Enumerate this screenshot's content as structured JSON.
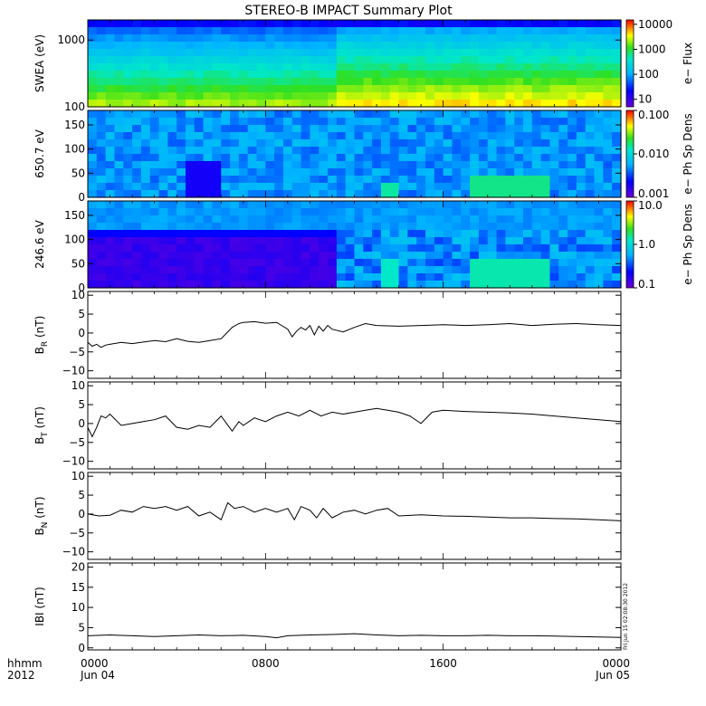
{
  "title": "STEREO-B IMPACT Summary Plot",
  "footer": {
    "left_top": "hhmm",
    "left_bottom": "2012",
    "ticks": [
      {
        "hour": 0,
        "top": "0000",
        "bottom": "Jun 04"
      },
      {
        "hour": 8,
        "top": "0800",
        "bottom": ""
      },
      {
        "hour": 16,
        "top": "1600",
        "bottom": ""
      },
      {
        "hour": 24,
        "top": "0000",
        "bottom": "Jun 05"
      }
    ],
    "stamp": "Fri Jun 15 02:08:30 2012"
  },
  "chart_data": [
    {
      "type": "heatmap",
      "ylabel": "SWEA (eV)",
      "colorbar_label": "e− Flux",
      "y_scale": "log",
      "ylim": [
        100,
        2000
      ],
      "yticks": [
        "100",
        "1000"
      ],
      "colorbar_ticks": [
        "10",
        "100",
        "1000",
        "10000"
      ],
      "colorbar_range": [
        5,
        15000
      ],
      "xlim_hours": [
        0,
        24
      ]
    },
    {
      "type": "heatmap",
      "ylabel": "650.7 eV",
      "colorbar_label": "e− Ph Sp Dens",
      "ylim": [
        0,
        180
      ],
      "yticks": [
        "0",
        "50",
        "100",
        "150"
      ],
      "colorbar_ticks": [
        "0.001",
        "0.010",
        "0.100"
      ],
      "colorbar_range": [
        0.001,
        0.1
      ],
      "xlim_hours": [
        0,
        24
      ]
    },
    {
      "type": "heatmap",
      "ylabel": "246.6 eV",
      "colorbar_label": "e− Ph Sp Dens",
      "ylim": [
        0,
        180
      ],
      "yticks": [
        "0",
        "50",
        "100",
        "150"
      ],
      "colorbar_ticks": [
        "0.1",
        "1.0",
        "10.0"
      ],
      "colorbar_range": [
        0.1,
        10
      ],
      "xlim_hours": [
        0,
        24
      ]
    },
    {
      "type": "line",
      "ylabel_main": "B",
      "ylabel_sub": "R",
      "ylabel_unit": " (nT)",
      "ylim": [
        -12,
        11
      ],
      "yticks": [
        "−10",
        "−5",
        "0",
        "5",
        "10"
      ],
      "xlim_hours": [
        0,
        24
      ],
      "x": [
        0,
        0.2,
        0.4,
        0.6,
        0.8,
        1.0,
        1.5,
        2.0,
        2.5,
        3.0,
        3.5,
        4.0,
        4.5,
        5.0,
        5.5,
        6.0,
        6.5,
        6.8,
        7.0,
        7.5,
        8.0,
        8.5,
        9.0,
        9.2,
        9.4,
        9.6,
        9.8,
        10.0,
        10.2,
        10.4,
        10.6,
        10.8,
        11.0,
        11.5,
        12.0,
        12.5,
        13.0,
        14.0,
        15.0,
        16.0,
        17.0,
        18.0,
        19.0,
        20.0,
        21.0,
        22.0,
        23.0,
        24.0
      ],
      "y": [
        -2.5,
        -3.5,
        -3.0,
        -3.8,
        -3.2,
        -3.0,
        -2.5,
        -2.8,
        -2.4,
        -2.0,
        -2.3,
        -1.5,
        -2.2,
        -2.5,
        -2.0,
        -1.5,
        1.5,
        2.5,
        2.8,
        3.0,
        2.6,
        2.8,
        1.0,
        -1.0,
        0.5,
        1.5,
        0.8,
        2.0,
        -0.5,
        1.8,
        0.5,
        2.0,
        1.0,
        0.3,
        1.5,
        2.5,
        2.0,
        1.8,
        2.0,
        2.2,
        2.0,
        2.2,
        2.5,
        2.0,
        2.3,
        2.5,
        2.2,
        2.0
      ]
    },
    {
      "type": "line",
      "ylabel_main": "B",
      "ylabel_sub": "T",
      "ylabel_unit": " (nT)",
      "ylim": [
        -12,
        11
      ],
      "yticks": [
        "−10",
        "−5",
        "0",
        "5",
        "10"
      ],
      "xlim_hours": [
        0,
        24
      ],
      "x": [
        0,
        0.2,
        0.4,
        0.6,
        0.8,
        1.0,
        1.5,
        2.0,
        2.5,
        3.0,
        3.5,
        4.0,
        4.5,
        5.0,
        5.5,
        6.0,
        6.5,
        6.8,
        7.0,
        7.5,
        8.0,
        8.5,
        9.0,
        9.5,
        10.0,
        10.5,
        11.0,
        11.5,
        12.0,
        12.5,
        13.0,
        13.5,
        14.0,
        14.5,
        15.0,
        15.5,
        16.0,
        17.0,
        18.0,
        19.0,
        20.0,
        21.0,
        22.0,
        23.0,
        24.0
      ],
      "y": [
        -1.0,
        -3.5,
        -1.0,
        2.0,
        1.5,
        2.5,
        -0.5,
        0.0,
        0.5,
        1.0,
        2.0,
        -1.0,
        -1.5,
        -0.5,
        -1.0,
        2.0,
        -2.0,
        0.5,
        -0.5,
        1.5,
        0.5,
        2.0,
        3.0,
        2.0,
        3.5,
        2.0,
        3.0,
        2.5,
        3.0,
        3.5,
        4.0,
        3.5,
        3.0,
        2.0,
        0.0,
        3.0,
        3.5,
        3.2,
        3.0,
        2.8,
        2.5,
        2.0,
        1.5,
        1.0,
        0.5
      ]
    },
    {
      "type": "line",
      "ylabel_main": "B",
      "ylabel_sub": "N",
      "ylabel_unit": " (nT)",
      "ylim": [
        -12,
        11
      ],
      "yticks": [
        "−10",
        "−5",
        "0",
        "5",
        "10"
      ],
      "xlim_hours": [
        0,
        24
      ],
      "x": [
        0,
        0.5,
        1.0,
        1.5,
        2.0,
        2.5,
        3.0,
        3.5,
        4.0,
        4.5,
        5.0,
        5.5,
        6.0,
        6.3,
        6.6,
        7.0,
        7.5,
        8.0,
        8.5,
        9.0,
        9.3,
        9.6,
        10.0,
        10.3,
        10.6,
        11.0,
        11.5,
        12.0,
        12.5,
        13.0,
        13.5,
        14.0,
        15.0,
        16.0,
        17.0,
        18.0,
        19.0,
        20.0,
        21.0,
        22.0,
        23.0,
        24.0
      ],
      "y": [
        0.0,
        -0.5,
        -0.3,
        1.0,
        0.5,
        2.0,
        1.5,
        2.0,
        1.0,
        2.0,
        -0.5,
        0.5,
        -1.5,
        3.0,
        1.5,
        2.0,
        0.5,
        1.5,
        0.5,
        1.5,
        -1.5,
        2.0,
        1.0,
        -1.0,
        1.5,
        -1.0,
        0.5,
        1.0,
        0.0,
        1.0,
        1.5,
        -0.5,
        -0.2,
        -0.5,
        -0.6,
        -0.8,
        -1.0,
        -1.0,
        -1.2,
        -1.3,
        -1.5,
        -1.8
      ]
    },
    {
      "type": "line",
      "ylabel_main": "IBI",
      "ylabel_sub": "",
      "ylabel_unit": " (nT)",
      "ylim": [
        -0.5,
        21
      ],
      "yticks": [
        "0",
        "5",
        "10",
        "15",
        "20"
      ],
      "xlim_hours": [
        0,
        24
      ],
      "x": [
        0,
        1,
        2,
        3,
        4,
        5,
        6,
        7,
        8,
        8.5,
        9,
        10,
        11,
        12,
        13,
        14,
        15,
        16,
        17,
        18,
        19,
        20,
        21,
        22,
        23,
        24
      ],
      "y": [
        3.0,
        3.2,
        3.0,
        2.8,
        3.0,
        3.2,
        3.0,
        3.1,
        2.8,
        2.5,
        3.0,
        3.2,
        3.3,
        3.5,
        3.2,
        3.0,
        3.1,
        3.0,
        3.0,
        3.1,
        3.0,
        3.0,
        2.9,
        2.8,
        2.7,
        2.6
      ]
    }
  ]
}
